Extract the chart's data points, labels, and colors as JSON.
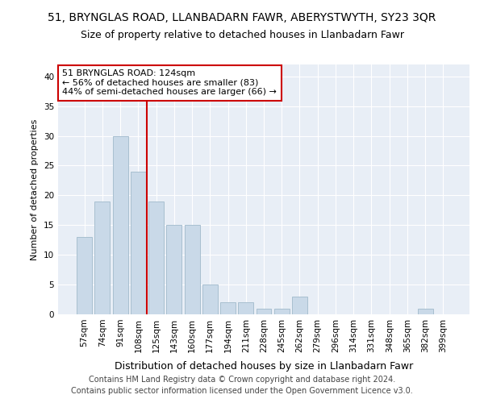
{
  "title": "51, BRYNGLAS ROAD, LLANBADARN FAWR, ABERYSTWYTH, SY23 3QR",
  "subtitle": "Size of property relative to detached houses in Llanbadarn Fawr",
  "xlabel": "Distribution of detached houses by size in Llanbadarn Fawr",
  "ylabel": "Number of detached properties",
  "bar_labels": [
    "57sqm",
    "74sqm",
    "91sqm",
    "108sqm",
    "125sqm",
    "143sqm",
    "160sqm",
    "177sqm",
    "194sqm",
    "211sqm",
    "228sqm",
    "245sqm",
    "262sqm",
    "279sqm",
    "296sqm",
    "314sqm",
    "331sqm",
    "348sqm",
    "365sqm",
    "382sqm",
    "399sqm"
  ],
  "bar_values": [
    13,
    19,
    30,
    24,
    19,
    15,
    15,
    5,
    2,
    2,
    1,
    1,
    3,
    0,
    0,
    0,
    0,
    0,
    0,
    1,
    0
  ],
  "bar_color": "#c9d9e8",
  "bar_edge_color": "#a8bfd0",
  "vline_color": "#cc0000",
  "annotation_text": "51 BRYNGLAS ROAD: 124sqm\n← 56% of detached houses are smaller (83)\n44% of semi-detached houses are larger (66) →",
  "annotation_box_color": "#ffffff",
  "annotation_box_edge": "#cc0000",
  "ylim": [
    0,
    42
  ],
  "yticks": [
    0,
    5,
    10,
    15,
    20,
    25,
    30,
    35,
    40
  ],
  "footnote": "Contains HM Land Registry data © Crown copyright and database right 2024.\nContains public sector information licensed under the Open Government Licence v3.0.",
  "plot_bg_color": "#e8eef6",
  "title_fontsize": 10,
  "subtitle_fontsize": 9,
  "xlabel_fontsize": 9,
  "ylabel_fontsize": 8,
  "tick_fontsize": 7.5,
  "annotation_fontsize": 8,
  "footnote_fontsize": 7
}
